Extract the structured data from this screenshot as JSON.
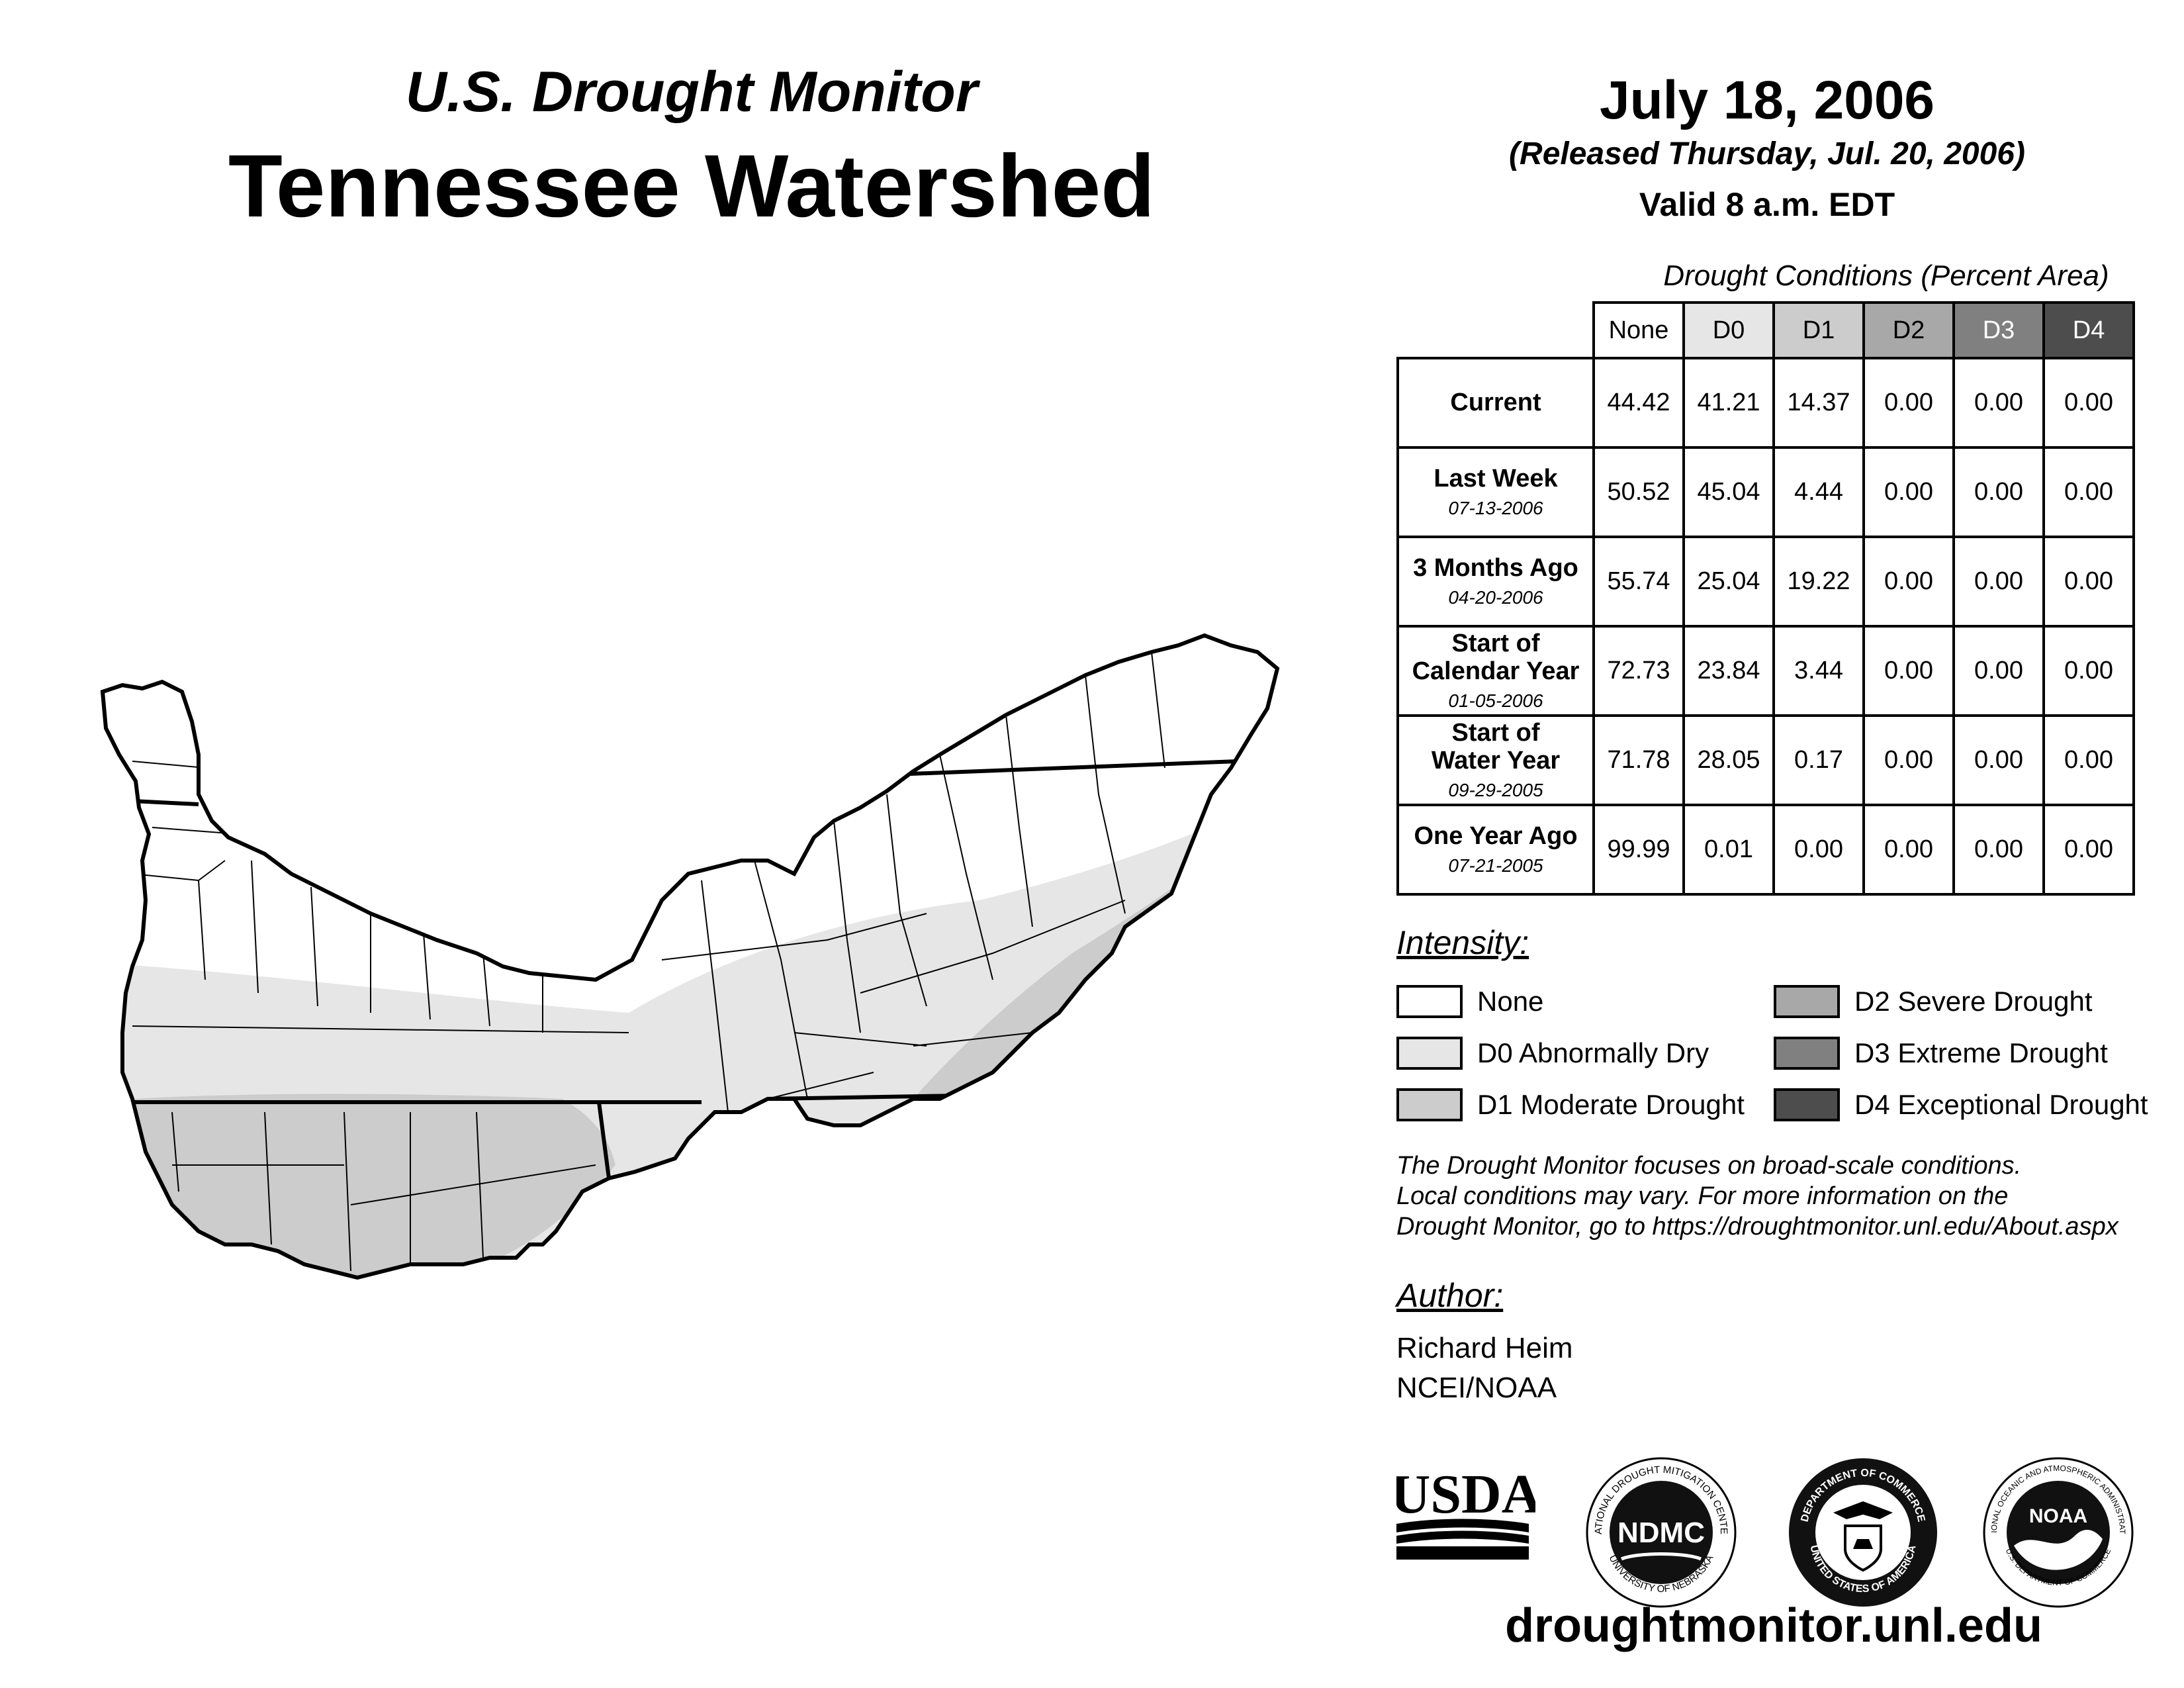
{
  "header": {
    "subtitle": "U.S. Drought Monitor",
    "title": "Tennessee Watershed",
    "date": "July 18, 2006",
    "released": "(Released Thursday, Jul. 20, 2006)",
    "valid": "Valid 8 a.m. EDT"
  },
  "table": {
    "caption": "Drought Conditions (Percent Area)",
    "columns": [
      "None",
      "D0",
      "D1",
      "D2",
      "D3",
      "D4"
    ],
    "column_colors": [
      "#ffffff",
      "#e6e6e6",
      "#cccccc",
      "#a8a8a8",
      "#808080",
      "#4d4d4d"
    ],
    "rows": [
      {
        "label": "Current",
        "label2": "",
        "date": "",
        "values": [
          "44.42",
          "41.21",
          "14.37",
          "0.00",
          "0.00",
          "0.00"
        ]
      },
      {
        "label": "Last Week",
        "label2": "",
        "date": "07-13-2006",
        "values": [
          "50.52",
          "45.04",
          "4.44",
          "0.00",
          "0.00",
          "0.00"
        ]
      },
      {
        "label": "3 Months Ago",
        "label2": "",
        "date": "04-20-2006",
        "values": [
          "55.74",
          "25.04",
          "19.22",
          "0.00",
          "0.00",
          "0.00"
        ]
      },
      {
        "label": "Start of",
        "label2": "Calendar Year",
        "date": "01-05-2006",
        "values": [
          "72.73",
          "23.84",
          "3.44",
          "0.00",
          "0.00",
          "0.00"
        ]
      },
      {
        "label": "Start of",
        "label2": "Water Year",
        "date": "09-29-2005",
        "values": [
          "71.78",
          "28.05",
          "0.17",
          "0.00",
          "0.00",
          "0.00"
        ]
      },
      {
        "label": "One Year Ago",
        "label2": "",
        "date": "07-21-2005",
        "values": [
          "99.99",
          "0.01",
          "0.00",
          "0.00",
          "0.00",
          "0.00"
        ]
      }
    ]
  },
  "legend": {
    "title": "Intensity:",
    "items": [
      {
        "label": "None",
        "color": "#ffffff"
      },
      {
        "label": "D0 Abnormally Dry",
        "color": "#e6e6e6"
      },
      {
        "label": "D1 Moderate Drought",
        "color": "#cccccc"
      },
      {
        "label": "D2 Severe Drought",
        "color": "#a8a8a8"
      },
      {
        "label": "D3 Extreme Drought",
        "color": "#808080"
      },
      {
        "label": "D4 Exceptional Drought",
        "color": "#4d4d4d"
      }
    ]
  },
  "note": {
    "line1": "The Drought Monitor focuses on broad-scale conditions.",
    "line2": "Local conditions may vary. For more information on the",
    "line3": "Drought Monitor, go to https://droughtmonitor.unl.edu/About.aspx"
  },
  "author": {
    "title": "Author:",
    "name": "Richard Heim",
    "org": "NCEI/NOAA"
  },
  "logos": {
    "usda": "USDA",
    "ndmc": "NDMC",
    "ndmc_ring_top": "NATIONAL DROUGHT MITIGATION CENTER",
    "ndmc_ring_bottom": "UNIVERSITY OF NEBRASKA",
    "doc_ring_top": "DEPARTMENT OF COMMERCE",
    "doc_ring_bottom": "UNITED STATES OF AMERICA",
    "noaa": "NOAA",
    "noaa_ring_top": "NATIONAL OCEANIC AND ATMOSPHERIC ADMINISTRATION",
    "noaa_ring_bottom": "U.S. DEPARTMENT OF COMMERCE"
  },
  "site": "droughtmonitor.unl.edu"
}
